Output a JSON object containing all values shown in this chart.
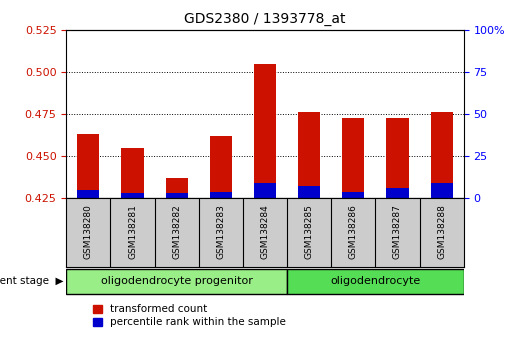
{
  "title": "GDS2380 / 1393778_at",
  "samples": [
    "GSM138280",
    "GSM138281",
    "GSM138282",
    "GSM138283",
    "GSM138284",
    "GSM138285",
    "GSM138286",
    "GSM138287",
    "GSM138288"
  ],
  "transformed_count": [
    0.463,
    0.455,
    0.437,
    0.462,
    0.505,
    0.476,
    0.473,
    0.473,
    0.476
  ],
  "percentile_rank": [
    0.43,
    0.428,
    0.428,
    0.429,
    0.434,
    0.432,
    0.429,
    0.431,
    0.434
  ],
  "ylim_left": [
    0.425,
    0.525
  ],
  "yticks_left": [
    0.425,
    0.45,
    0.475,
    0.5,
    0.525
  ],
  "ylim_right": [
    0,
    100
  ],
  "yticks_right": [
    0,
    25,
    50,
    75,
    100
  ],
  "yticklabels_right": [
    "0",
    "25",
    "50",
    "75",
    "100%"
  ],
  "bar_color_red": "#CC1100",
  "bar_color_blue": "#0000CC",
  "bar_width": 0.5,
  "groups": [
    {
      "label": "oligodendrocyte progenitor",
      "start": 0,
      "end": 5,
      "color": "#99EE88"
    },
    {
      "label": "oligodendrocyte",
      "start": 5,
      "end": 9,
      "color": "#55DD55"
    }
  ],
  "legend_items": [
    {
      "label": "transformed count",
      "color": "#CC1100"
    },
    {
      "label": "percentile rank within the sample",
      "color": "#0000CC"
    }
  ],
  "tick_label_area_color": "#CCCCCC",
  "title_fontsize": 10,
  "axis_fontsize": 8,
  "tick_fontsize": 8,
  "sample_fontsize": 6.5,
  "group_fontsize": 8,
  "legend_fontsize": 7.5
}
